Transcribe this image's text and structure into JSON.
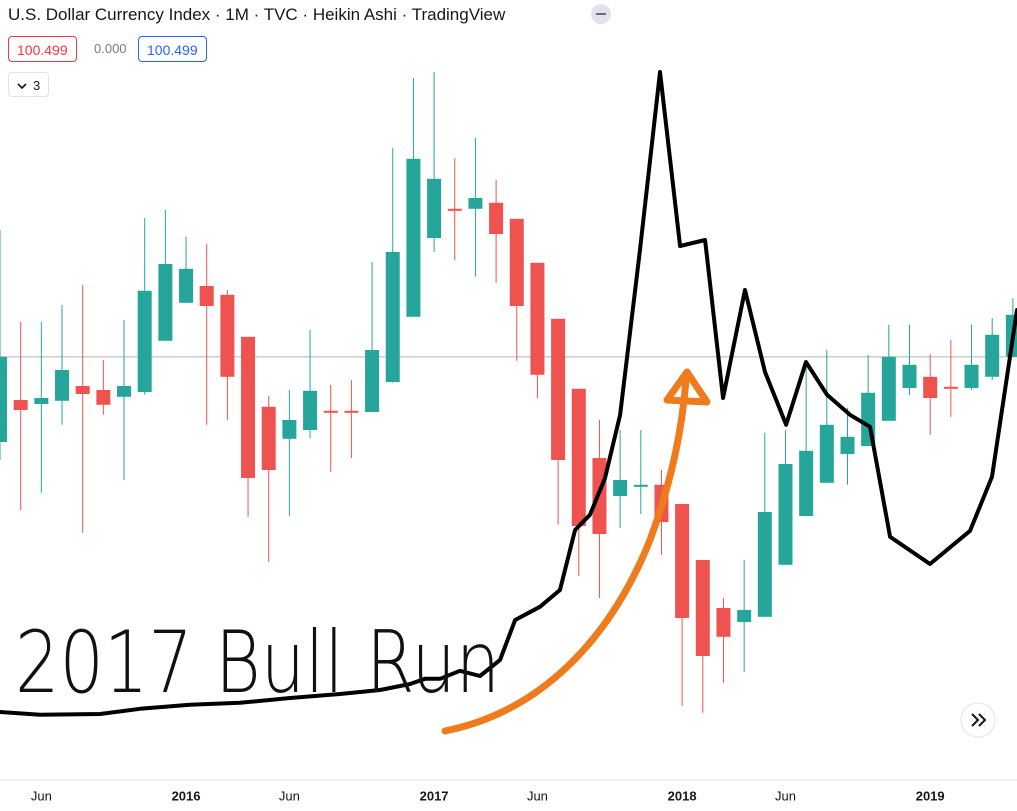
{
  "chart_data": {
    "type": "candlestick",
    "title": "U.S. Dollar Currency Index · 1M · TVC · Heikin Ashi · TradingView",
    "quote": {
      "values": [
        100.499,
        0,
        100.499
      ],
      "value_labels": [
        "100.499",
        "0.000",
        "100.499"
      ]
    },
    "indicator_count": 3,
    "annotations": [
      "2017 Bull Run"
    ],
    "categories": [
      null,
      null,
      "Jun",
      null,
      null,
      null,
      null,
      null,
      null,
      "2016",
      null,
      null,
      null,
      null,
      "Jun",
      null,
      null,
      null,
      null,
      null,
      null,
      "2017",
      null,
      null,
      null,
      null,
      "Jun",
      null,
      null,
      null,
      null,
      null,
      null,
      "2018",
      null,
      null,
      null,
      null,
      "Jun",
      null,
      null,
      null,
      null,
      null,
      null,
      "2019",
      null,
      null,
      null,
      null
    ],
    "open": [
      98.37,
      99.42,
      99.32,
      99.4,
      99.77,
      99.67,
      99.5,
      99.62,
      100.9,
      101.85,
      102.27,
      102.05,
      101.0,
      99.25,
      98.45,
      98.67,
      99.15,
      99.15,
      99.12,
      99.87,
      101.5,
      103.47,
      104.2,
      104.2,
      104.35,
      103.95,
      102.85,
      101.45,
      99.7,
      97.97,
      97.02,
      97.25,
      97.3,
      96.82,
      95.42,
      94.22,
      93.87,
      94.0,
      95.3,
      96.52,
      97.35,
      98.07,
      98.27,
      98.9,
      99.72,
      100.0,
      99.75,
      99.72,
      100.0,
      100.5
    ],
    "high": [
      103.67,
      101.37,
      101.37,
      101.8,
      102.3,
      100.42,
      101.42,
      103.97,
      104.17,
      103.5,
      103.32,
      102.17,
      101.0,
      99.52,
      99.67,
      101.17,
      99.8,
      99.92,
      102.87,
      105.72,
      107.47,
      107.62,
      105.47,
      105.97,
      104.92,
      103.95,
      102.85,
      101.45,
      99.7,
      98.92,
      98.67,
      98.67,
      97.67,
      96.82,
      95.42,
      94.47,
      95.42,
      98.6,
      98.67,
      100.42,
      100.67,
      99.22,
      100.55,
      101.3,
      101.3,
      100.57,
      100.92,
      101.3,
      101.47,
      101.97
    ],
    "low": [
      97.92,
      96.67,
      97.1,
      98.8,
      96.1,
      99.05,
      97.42,
      99.55,
      100.9,
      101.85,
      98.8,
      98.92,
      96.5,
      95.37,
      96.52,
      98.47,
      97.62,
      97.97,
      99.12,
      99.85,
      101.5,
      103.12,
      102.92,
      102.5,
      102.35,
      100.4,
      99.47,
      96.3,
      95.02,
      94.47,
      96.22,
      96.57,
      95.55,
      91.77,
      91.6,
      92.35,
      92.62,
      94.0,
      95.3,
      96.52,
      97.35,
      97.3,
      98.27,
      98.9,
      99.55,
      98.55,
      99.0,
      99.67,
      99.92,
      100.5
    ],
    "close": [
      100.5,
      99.17,
      99.47,
      100.17,
      99.57,
      99.3,
      99.77,
      102.15,
      102.82,
      102.7,
      101.77,
      100.0,
      97.47,
      97.67,
      98.92,
      99.65,
      99.1,
      99.1,
      100.67,
      103.12,
      105.45,
      104.95,
      104.15,
      104.47,
      103.57,
      101.77,
      100.05,
      97.92,
      96.27,
      96.07,
      97.42,
      97.3,
      96.37,
      93.97,
      93.02,
      93.5,
      94.17,
      96.62,
      97.82,
      98.15,
      98.8,
      98.5,
      99.6,
      100.5,
      100.3,
      99.47,
      99.7,
      100.3,
      101.05,
      101.55
    ],
    "up_color": "#26a69a",
    "down_color": "#ef5350",
    "overlay": {
      "color": "#000000",
      "x": [
        0,
        1.94,
        4.84,
        6.77,
        9.19,
        11.61,
        14.03,
        16.45,
        18.38,
        19.84,
        20.56,
        21.29,
        22.25,
        23.22,
        24.19,
        24.92,
        26.12,
        27.09,
        27.82,
        28.54,
        29.27,
        30.0,
        30.96,
        31.93,
        32.9,
        34.11,
        34.98,
        36.04,
        37.01,
        38.03,
        38.99,
        40.01,
        41.12,
        42.09,
        43.06,
        44.99,
        46.93,
        47.99,
        49.2
      ],
      "values": [
        91.62,
        91.55,
        91.57,
        91.7,
        91.8,
        91.85,
        91.97,
        92.07,
        92.17,
        92.32,
        92.45,
        92.45,
        92.65,
        92.52,
        92.92,
        93.92,
        94.25,
        94.67,
        96.17,
        96.55,
        97.47,
        99.05,
        103.17,
        107.62,
        103.27,
        103.42,
        99.47,
        102.17,
        100.12,
        98.8,
        100.37,
        99.55,
        99.05,
        98.75,
        96.0,
        95.32,
        96.15,
        97.5,
        101.67
      ]
    },
    "xlim": [
      0,
      49.2
    ],
    "ylim": [
      89.92,
      109.42
    ]
  }
}
